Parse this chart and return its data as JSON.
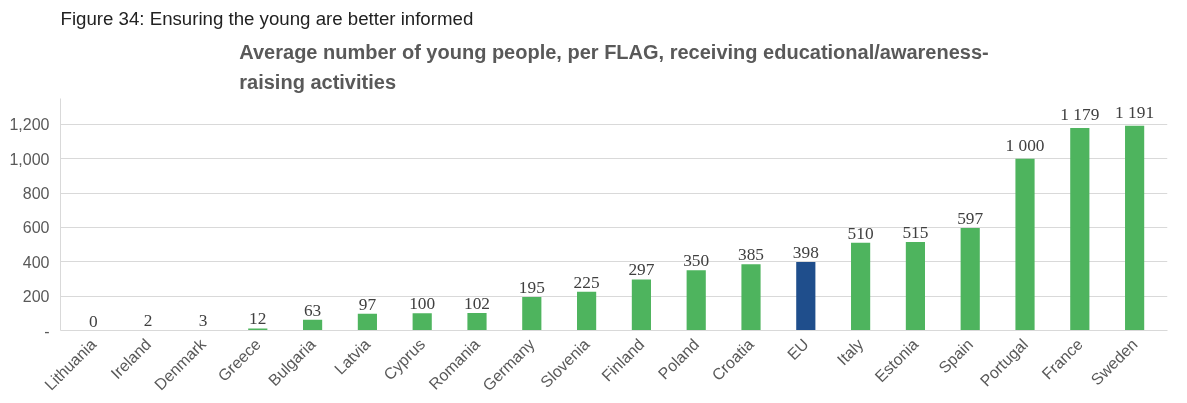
{
  "chart_data": {
    "type": "bar",
    "title": "Average number of young people, per FLAG, receiving educational/awareness-raising activities",
    "annotations": [
      "Figure 34: Ensuring the young are better informed"
    ],
    "categories": [
      "Lithuania",
      "Ireland",
      "Denmark",
      "Greece",
      "Bulgaria",
      "Latvia",
      "Cyprus",
      "Romania",
      "Germany",
      "Slovenia",
      "Finland",
      "Poland",
      "Croatia",
      "EU",
      "Italy",
      "Estonia",
      "Spain",
      "Portugal",
      "France",
      "Sweden"
    ],
    "values": [
      0,
      2,
      3,
      12,
      63,
      97,
      100,
      102,
      195,
      225,
      297,
      350,
      385,
      398,
      510,
      515,
      597,
      1000,
      1179,
      1191
    ],
    "value_labels": [
      "0",
      "2",
      "3",
      "12",
      "63",
      "97",
      "100",
      "102",
      "195",
      "225",
      "297",
      "350",
      "385",
      "398",
      "510",
      "515",
      "597",
      "1 000",
      "1 179",
      "1 191"
    ],
    "colors": [
      "#4eb45e",
      "#4eb45e",
      "#4eb45e",
      "#4eb45e",
      "#4eb45e",
      "#4eb45e",
      "#4eb45e",
      "#4eb45e",
      "#4eb45e",
      "#4eb45e",
      "#4eb45e",
      "#4eb45e",
      "#4eb45e",
      "#1f4e8c",
      "#4eb45e",
      "#4eb45e",
      "#4eb45e",
      "#4eb45e",
      "#4eb45e",
      "#4eb45e"
    ],
    "ylim": [
      0,
      1350
    ],
    "yticks": [
      {
        "value": 0,
        "label": "-"
      },
      {
        "value": 200,
        "label": "200"
      },
      {
        "value": 400,
        "label": "400"
      },
      {
        "value": 600,
        "label": "600"
      },
      {
        "value": 800,
        "label": "800"
      },
      {
        "value": 1000,
        "label": "1,000"
      },
      {
        "value": 1200,
        "label": "1,200"
      }
    ],
    "grid": "y"
  }
}
